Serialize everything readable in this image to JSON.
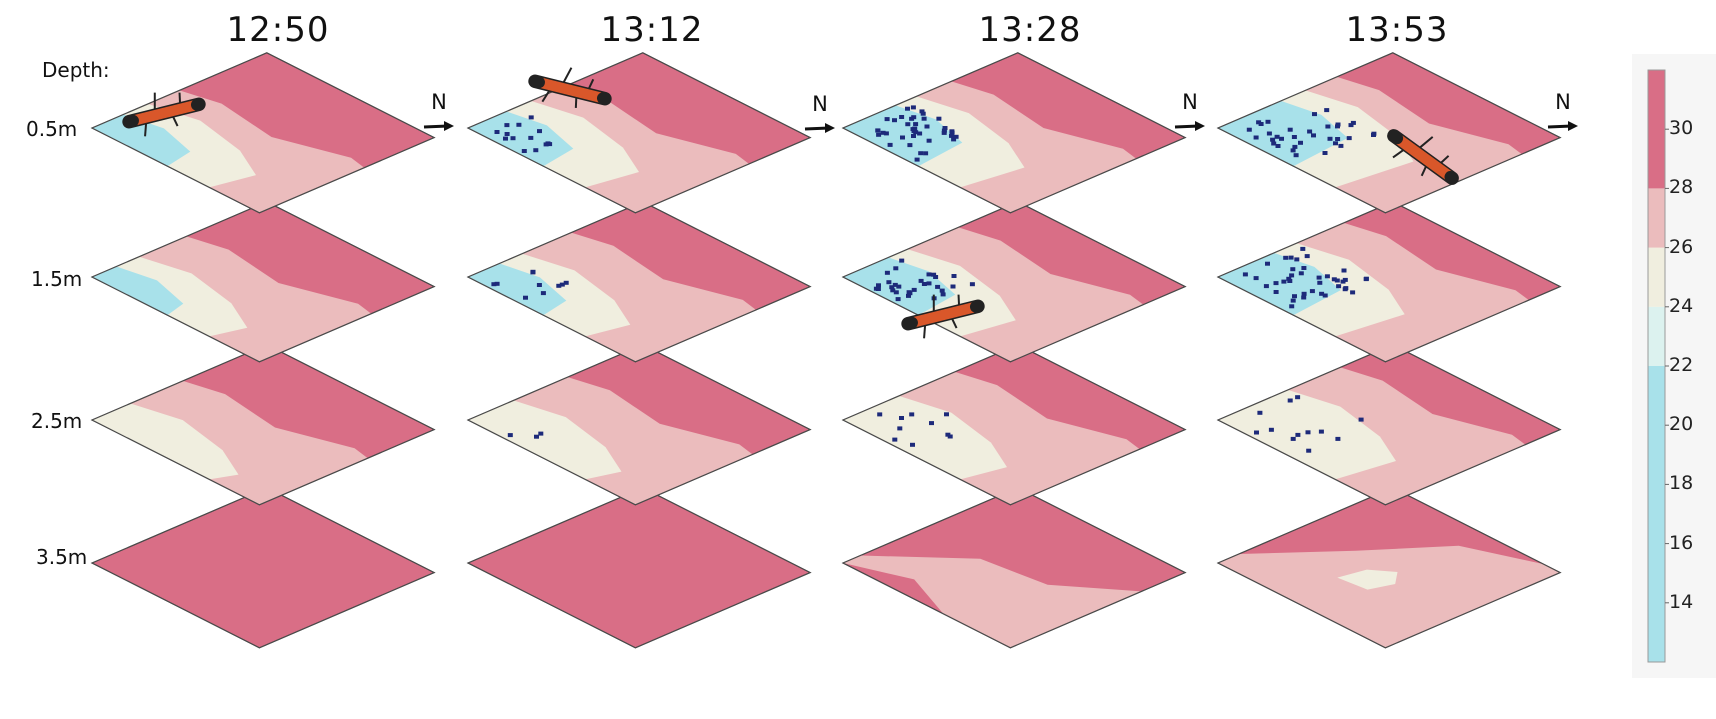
{
  "times": [
    "12:50",
    "13:12",
    "13:28",
    "13:53"
  ],
  "depth_title": "Depth:",
  "depths": [
    "0.5m",
    "1.5m",
    "2.5m",
    "3.5m"
  ],
  "north_label": "N",
  "colorbar": {
    "ticks": [
      30,
      28,
      26,
      24,
      22,
      20,
      18,
      16,
      14
    ],
    "range": [
      12,
      32
    ],
    "bands": [
      {
        "from": 12,
        "to": 22,
        "color": "#a8e1ea"
      },
      {
        "from": 22,
        "to": 24,
        "color": "#dcf2ef"
      },
      {
        "from": 24,
        "to": 26,
        "color": "#f0eedf"
      },
      {
        "from": 26,
        "to": 28,
        "color": "#ebbcbd"
      },
      {
        "from": 28,
        "to": 32,
        "color": "#d96e86"
      }
    ]
  },
  "colors": {
    "warm": "#d96e86",
    "pink": "#ebbcbd",
    "cream": "#f0eedf",
    "cool": "#a8e1ea",
    "samples": "#1d2a7a",
    "vehicle_body": "#d9572a"
  },
  "vehicle_positions": [
    {
      "time": "12:50",
      "depth": "0.5m"
    },
    {
      "time": "13:12",
      "depth": "0.5m"
    },
    {
      "time": "13:28",
      "depth": "1.5m"
    },
    {
      "time": "13:53",
      "depth": "0.5m"
    }
  ]
}
